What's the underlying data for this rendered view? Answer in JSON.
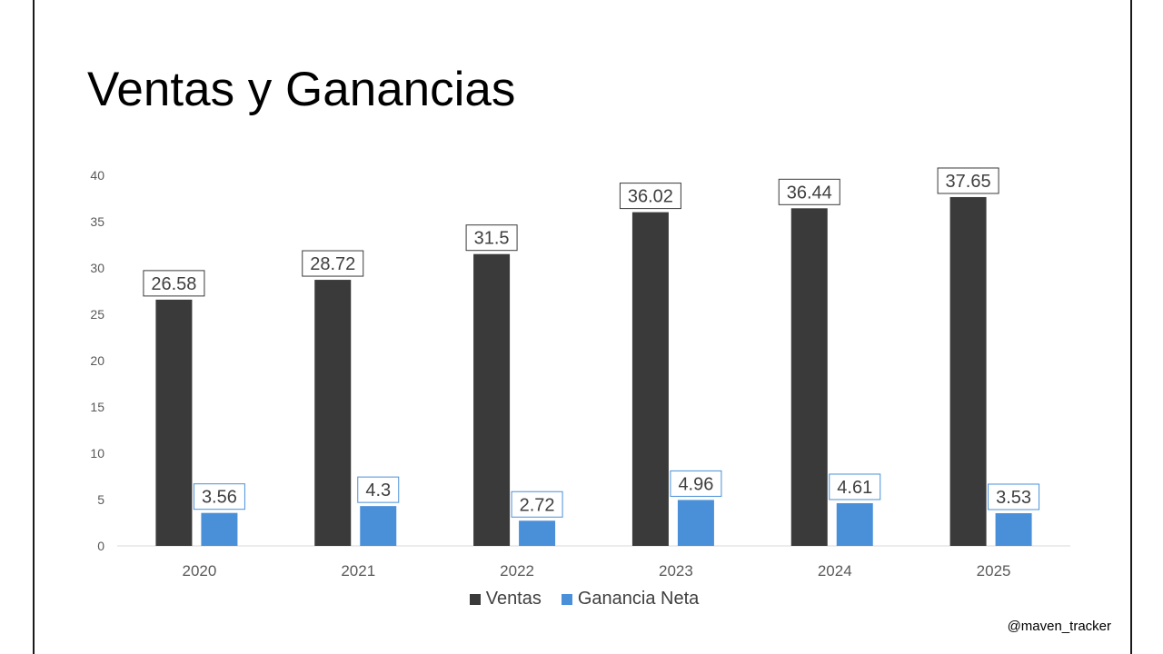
{
  "title": "Ventas y Ganancias",
  "watermark": "@maven_tracker",
  "colors": {
    "ventas": "#3a3a3a",
    "ganancia_neta": "#4a90d9",
    "axis_text": "#595959",
    "baseline": "#d9d9d9"
  },
  "chart_data": {
    "type": "bar",
    "categories": [
      "2020",
      "2021",
      "2022",
      "2023",
      "2024",
      "2025"
    ],
    "series": [
      {
        "name": "Ventas",
        "values": [
          26.58,
          28.72,
          31.5,
          36.02,
          36.44,
          37.65
        ]
      },
      {
        "name": "Ganancia Neta",
        "values": [
          3.56,
          4.3,
          2.72,
          4.96,
          4.61,
          3.53
        ]
      }
    ],
    "y_ticks": [
      0,
      5,
      10,
      15,
      20,
      25,
      30,
      35,
      40
    ],
    "ylim": [
      0,
      40
    ],
    "grid": false,
    "data_labels": true,
    "legend_position": "bottom"
  }
}
